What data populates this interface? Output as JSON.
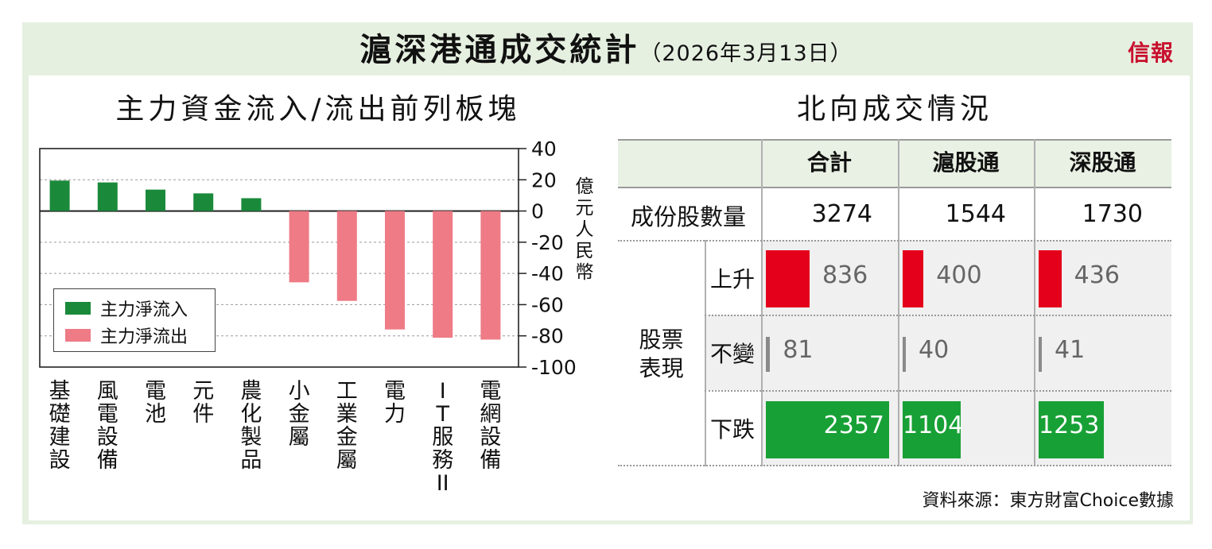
{
  "header": {
    "title": "滬深港通成交統計",
    "date": "（2026年3月13日）",
    "logo": "信報"
  },
  "left_panel": {
    "title": "主力資金流入/流出前列板塊",
    "unit_chars": [
      "億",
      "元",
      "人",
      "民",
      "幣"
    ]
  },
  "right_panel": {
    "title": "北向成交情況"
  },
  "colors": {
    "inflow": "#1a8a3a",
    "outflow": "#ee7b86",
    "rise": "#e4001b",
    "flat": "#8a8a8a",
    "fall": "#17a035",
    "frame": "#e6f0e1",
    "table_header": "#e9f1e4",
    "table_shade": "#f0f0f0"
  },
  "chart_data": [
    {
      "type": "bar",
      "title": "主力資金流入/流出前列板塊",
      "ylabel": "億元人民幣",
      "ylim": [
        -100,
        40
      ],
      "yticks": [
        40,
        20,
        0,
        -20,
        -40,
        -60,
        -80,
        -100
      ],
      "grid": true,
      "legend_position": "bottom-left",
      "categories": [
        "基礎建設",
        "風電設備",
        "電池",
        "元件",
        "農化製品",
        "小金屬",
        "工業金屬",
        "電力",
        "IT服務II",
        "電網設備"
      ],
      "category_lines": [
        [
          "基",
          "礎",
          "建",
          "設"
        ],
        [
          "風",
          "電",
          "設",
          "備"
        ],
        [
          "電",
          "池"
        ],
        [
          "元",
          "件"
        ],
        [
          "農",
          "化",
          "製",
          "品"
        ],
        [
          "小",
          "金",
          "屬"
        ],
        [
          "工",
          "業",
          "金",
          "屬"
        ],
        [
          "電",
          "力"
        ],
        [
          "I",
          "T",
          "服",
          "務",
          "II"
        ],
        [
          "電",
          "網",
          "設",
          "備"
        ]
      ],
      "series": [
        {
          "name": "主力淨流入",
          "values": [
            19.5,
            18.3,
            13.7,
            11.3,
            8.2,
            null,
            null,
            null,
            null,
            null
          ]
        },
        {
          "name": "主力淨流出",
          "values": [
            null,
            null,
            null,
            null,
            null,
            -45.7,
            -57.6,
            -75.9,
            -81.2,
            -82.4
          ]
        }
      ]
    },
    {
      "type": "table",
      "title": "北向成交情況",
      "columns": [
        "合計",
        "滬股通",
        "深股通"
      ],
      "constituent_label": "成份股數量",
      "constituents": [
        3274,
        1544,
        1730
      ],
      "group_label_lines": [
        "股票",
        "表現"
      ],
      "rows": [
        {
          "label": "上升",
          "values": [
            836,
            400,
            436
          ]
        },
        {
          "label": "不變",
          "values": [
            81,
            40,
            41
          ]
        },
        {
          "label": "下跌",
          "values": [
            2357,
            1104,
            1253
          ]
        }
      ]
    }
  ],
  "source": "資料來源：東方財富Choice數據"
}
